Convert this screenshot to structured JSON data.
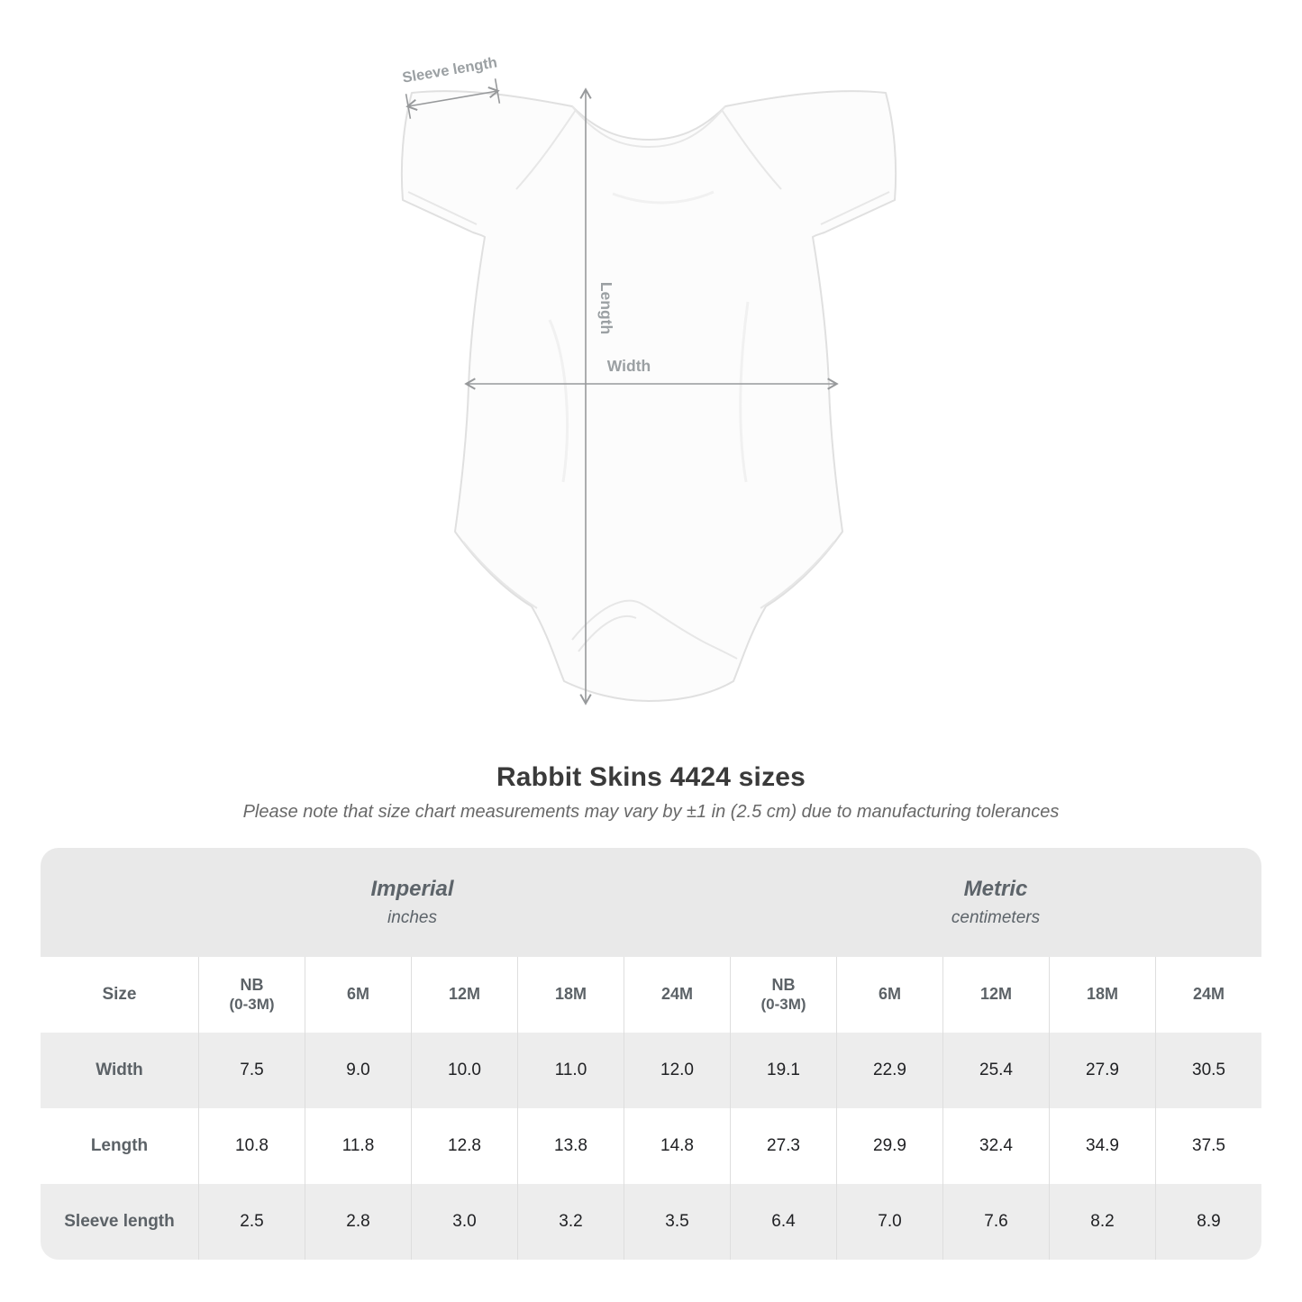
{
  "diagram": {
    "labels": {
      "sleeve_length": "Sleeve length",
      "length": "Length",
      "width": "Width"
    }
  },
  "title": "Rabbit Skins 4424 sizes",
  "note": "Please note that size chart measurements may vary by ±1 in (2.5 cm) due to manufacturing tolerances",
  "table": {
    "unit_groups": [
      {
        "name": "Imperial",
        "unit": "inches"
      },
      {
        "name": "Metric",
        "unit": "centimeters"
      }
    ],
    "size_header_label": "Size",
    "size_columns": [
      [
        "NB",
        "(0-3M)"
      ],
      [
        "6M"
      ],
      [
        "12M"
      ],
      [
        "18M"
      ],
      [
        "24M"
      ]
    ],
    "rows": [
      {
        "label": "Width",
        "imperial": [
          "7.5",
          "9.0",
          "10.0",
          "11.0",
          "12.0"
        ],
        "metric": [
          "19.1",
          "22.9",
          "25.4",
          "27.9",
          "30.5"
        ]
      },
      {
        "label": "Length",
        "imperial": [
          "10.8",
          "11.8",
          "12.8",
          "13.8",
          "14.8"
        ],
        "metric": [
          "27.3",
          "29.9",
          "32.4",
          "34.9",
          "37.5"
        ]
      },
      {
        "label": "Sleeve length",
        "imperial": [
          "2.5",
          "2.8",
          "3.0",
          "3.2",
          "3.5"
        ],
        "metric": [
          "6.4",
          "7.0",
          "7.6",
          "8.2",
          "8.9"
        ]
      }
    ]
  },
  "colors": {
    "table_band": "#e9e9e9",
    "table_alt_row": "#ededed",
    "dimension_line": "#97999b",
    "dimension_label": "#9ba0a3",
    "title_text": "#3a3a3a",
    "note_text": "#686868",
    "table_header_text": "#5c6267",
    "table_value_text": "#202124"
  }
}
